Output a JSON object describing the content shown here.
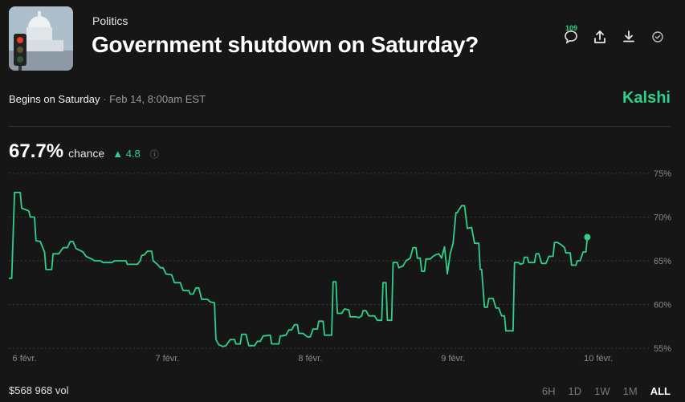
{
  "header": {
    "category": "Politics",
    "title": "Government shutdown on Saturday?",
    "comment_count": "109"
  },
  "meta": {
    "begins": "Begins on Saturday",
    "separator": "·",
    "date": "Feb 14, 8:00am EST",
    "brand": "Kalshi"
  },
  "chance": {
    "value": "67.7%",
    "label": "chance",
    "delta_arrow": "▲",
    "delta": "4.8",
    "info_icon": "ⓘ"
  },
  "icons": {
    "comment": "comment-icon",
    "share": "share-icon",
    "download": "download-icon",
    "watch": "check-circle-icon",
    "info": "info-icon"
  },
  "colors": {
    "background": "#161616",
    "accent": "#2fd18a",
    "gridline": "#3a3a3a"
  },
  "chart_data": {
    "type": "line",
    "ylim": [
      54,
      76
    ],
    "y_ticks": [
      75,
      70,
      65,
      60,
      55
    ],
    "y_tick_labels": [
      "75%",
      "70%",
      "65%",
      "60%",
      "55%"
    ],
    "x_tick_labels": [
      "6 févr.",
      "7 févr.",
      "8 févr.",
      "9 févr.",
      "10 févr."
    ],
    "x_tick_positions": [
      0,
      1,
      2,
      3,
      4
    ],
    "xlim": [
      -0.02,
      4.32
    ],
    "series": [
      {
        "values": [
          [
            -0.02,
            63.0
          ],
          [
            0.0,
            63.0
          ],
          [
            0.02,
            72.8
          ],
          [
            0.06,
            72.8
          ],
          [
            0.07,
            71.0
          ],
          [
            0.12,
            70.7
          ],
          [
            0.13,
            70.0
          ],
          [
            0.16,
            70.0
          ],
          [
            0.17,
            67.3
          ],
          [
            0.2,
            67.2
          ],
          [
            0.23,
            66.0
          ],
          [
            0.24,
            64.0
          ],
          [
            0.28,
            64.0
          ],
          [
            0.29,
            65.8
          ],
          [
            0.33,
            65.8
          ],
          [
            0.36,
            66.5
          ],
          [
            0.39,
            66.5
          ],
          [
            0.41,
            67.2
          ],
          [
            0.43,
            67.2
          ],
          [
            0.45,
            66.4
          ],
          [
            0.5,
            66.0
          ],
          [
            0.52,
            65.5
          ],
          [
            0.56,
            65.2
          ],
          [
            0.58,
            65.0
          ],
          [
            0.62,
            65.0
          ],
          [
            0.64,
            64.8
          ],
          [
            0.7,
            64.8
          ],
          [
            0.72,
            65.0
          ],
          [
            0.8,
            65.0
          ],
          [
            0.81,
            64.6
          ],
          [
            0.88,
            64.6
          ],
          [
            0.9,
            65.0
          ],
          [
            0.91,
            65.6
          ],
          [
            0.93,
            65.7
          ],
          [
            0.95,
            66.1
          ],
          [
            0.98,
            66.1
          ],
          [
            0.99,
            65.0
          ],
          [
            1.02,
            64.6
          ],
          [
            1.04,
            64.2
          ],
          [
            1.06,
            64.2
          ],
          [
            1.08,
            63.5
          ],
          [
            1.12,
            63.4
          ],
          [
            1.14,
            62.5
          ],
          [
            1.18,
            62.5
          ],
          [
            1.2,
            61.6
          ],
          [
            1.24,
            61.6
          ],
          [
            1.25,
            61.2
          ],
          [
            1.27,
            61.2
          ],
          [
            1.29,
            61.9
          ],
          [
            1.31,
            61.9
          ],
          [
            1.33,
            60.6
          ],
          [
            1.37,
            60.6
          ],
          [
            1.39,
            60.3
          ],
          [
            1.42,
            60.2
          ],
          [
            1.43,
            56.0
          ],
          [
            1.45,
            55.4
          ],
          [
            1.48,
            55.2
          ],
          [
            1.5,
            55.3
          ],
          [
            1.53,
            56.0
          ],
          [
            1.56,
            56.0
          ],
          [
            1.57,
            55.5
          ],
          [
            1.6,
            55.5
          ],
          [
            1.61,
            56.6
          ],
          [
            1.64,
            56.6
          ],
          [
            1.66,
            55.3
          ],
          [
            1.7,
            55.3
          ],
          [
            1.72,
            55.8
          ],
          [
            1.74,
            55.8
          ],
          [
            1.76,
            56.4
          ],
          [
            1.81,
            56.5
          ],
          [
            1.82,
            55.5
          ],
          [
            1.87,
            55.5
          ],
          [
            1.88,
            56.4
          ],
          [
            1.92,
            56.5
          ],
          [
            1.94,
            57.1
          ],
          [
            1.96,
            57.1
          ],
          [
            1.98,
            57.7
          ],
          [
            2.0,
            57.7
          ],
          [
            2.01,
            56.7
          ],
          [
            2.04,
            56.7
          ],
          [
            2.07,
            56.3
          ],
          [
            2.09,
            56.3
          ],
          [
            2.11,
            57.2
          ],
          [
            2.14,
            57.2
          ],
          [
            2.15,
            58.1
          ],
          [
            2.18,
            58.1
          ],
          [
            2.19,
            56.5
          ],
          [
            2.24,
            56.5
          ],
          [
            2.25,
            62.6
          ],
          [
            2.27,
            62.6
          ],
          [
            2.28,
            59.0
          ],
          [
            2.31,
            59.0
          ],
          [
            2.33,
            59.5
          ],
          [
            2.36,
            59.4
          ],
          [
            2.37,
            58.6
          ],
          [
            2.41,
            58.6
          ],
          [
            2.43,
            58.5
          ],
          [
            2.45,
            58.7
          ],
          [
            2.46,
            59.3
          ],
          [
            2.48,
            59.3
          ],
          [
            2.5,
            58.7
          ],
          [
            2.54,
            58.7
          ],
          [
            2.56,
            58.2
          ],
          [
            2.59,
            58.2
          ],
          [
            2.6,
            62.5
          ],
          [
            2.62,
            62.5
          ],
          [
            2.63,
            58.2
          ],
          [
            2.66,
            58.2
          ],
          [
            2.67,
            64.8
          ],
          [
            2.7,
            64.8
          ],
          [
            2.71,
            64.2
          ],
          [
            2.74,
            64.4
          ],
          [
            2.76,
            65.0
          ],
          [
            2.79,
            65.3
          ],
          [
            2.81,
            66.5
          ],
          [
            2.83,
            66.5
          ],
          [
            2.84,
            65.3
          ],
          [
            2.86,
            65.3
          ],
          [
            2.87,
            63.8
          ],
          [
            2.89,
            63.8
          ],
          [
            2.9,
            65.2
          ],
          [
            2.93,
            65.2
          ],
          [
            2.95,
            65.5
          ],
          [
            2.97,
            65.7
          ],
          [
            2.99,
            65.8
          ],
          [
            3.01,
            65.3
          ],
          [
            3.03,
            66.6
          ],
          [
            3.05,
            63.5
          ],
          [
            3.07,
            65.8
          ],
          [
            3.09,
            67.0
          ],
          [
            3.11,
            70.5
          ],
          [
            3.12,
            70.5
          ],
          [
            3.13,
            70.8
          ],
          [
            3.15,
            71.3
          ],
          [
            3.17,
            71.3
          ],
          [
            3.18,
            70.0
          ],
          [
            3.19,
            68.7
          ],
          [
            3.22,
            68.8
          ],
          [
            3.24,
            67.0
          ],
          [
            3.27,
            67.0
          ],
          [
            3.28,
            64.0
          ],
          [
            3.29,
            64.0
          ],
          [
            3.31,
            59.7
          ],
          [
            3.33,
            59.7
          ],
          [
            3.34,
            60.7
          ],
          [
            3.37,
            60.7
          ],
          [
            3.39,
            59.6
          ],
          [
            3.41,
            59.6
          ],
          [
            3.43,
            58.7
          ],
          [
            3.45,
            58.7
          ],
          [
            3.46,
            57.0
          ],
          [
            3.51,
            57.0
          ],
          [
            3.52,
            64.8
          ],
          [
            3.55,
            64.8
          ],
          [
            3.56,
            64.6
          ],
          [
            3.58,
            64.7
          ],
          [
            3.59,
            65.4
          ],
          [
            3.61,
            65.4
          ],
          [
            3.62,
            64.8
          ],
          [
            3.66,
            64.8
          ],
          [
            3.67,
            65.8
          ],
          [
            3.69,
            65.8
          ],
          [
            3.71,
            64.7
          ],
          [
            3.74,
            64.7
          ],
          [
            3.76,
            65.5
          ],
          [
            3.79,
            65.5
          ],
          [
            3.8,
            67.1
          ],
          [
            3.82,
            67.1
          ],
          [
            3.85,
            66.8
          ],
          [
            3.87,
            66.5
          ],
          [
            3.88,
            65.9
          ],
          [
            3.91,
            65.9
          ],
          [
            3.92,
            64.5
          ],
          [
            3.95,
            64.5
          ],
          [
            3.96,
            65.0
          ],
          [
            3.98,
            65.0
          ],
          [
            4.0,
            66.0
          ],
          [
            4.02,
            66.0
          ],
          [
            4.03,
            67.7
          ]
        ]
      }
    ],
    "last_point": [
      4.03,
      67.7
    ]
  },
  "footer": {
    "volume": "$568 968 vol",
    "ranges": [
      "6H",
      "1D",
      "1W",
      "1M",
      "ALL"
    ],
    "active_range": "ALL"
  }
}
